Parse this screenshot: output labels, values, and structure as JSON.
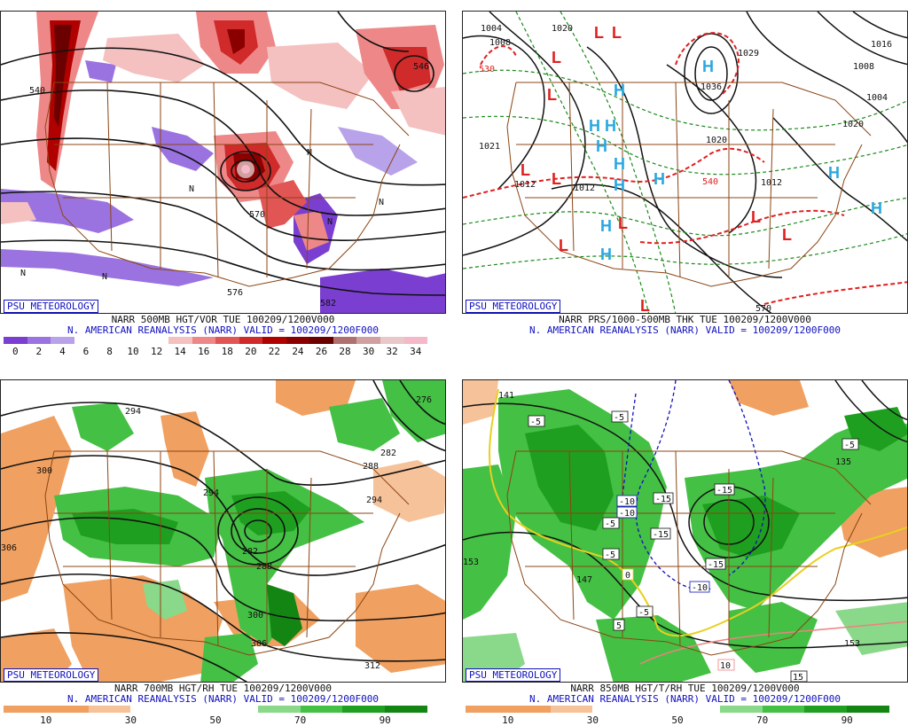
{
  "panels": [
    {
      "id": "500mb",
      "badge": "PSU METEOROLOGY",
      "title_line1": "NARR 500MB HGT/VOR TUE 100209/1200V000",
      "title_line2": "N. AMERICAN REANALYSIS (NARR) VALID = 100209/1200F000",
      "colorbar": {
        "colors": [
          "#7a3fd0",
          "#9a73e0",
          "#b8a3ea",
          "#ffffff",
          "#ffffff",
          "#ffffff",
          "#ffffff",
          "#f4c0c0",
          "#ee8888",
          "#e25555",
          "#d02a2a",
          "#b00000",
          "#8a0000",
          "#6a0000",
          "#b07070",
          "#d0a0a0",
          "#e8c8c8",
          "#f5b8c8"
        ],
        "ticks": [
          "0",
          "2",
          "4",
          "6",
          "8",
          "10",
          "12",
          "14",
          "16",
          "18",
          "20",
          "22",
          "24",
          "26",
          "28",
          "30",
          "32",
          "34"
        ]
      },
      "contour_labels": [
        "540",
        "546",
        "570",
        "576",
        "582"
      ],
      "map_symbols": [
        "N",
        "N",
        "N",
        "N",
        "N",
        "N"
      ]
    },
    {
      "id": "prs",
      "badge": "PSU METEOROLOGY",
      "title_line1": "NARR PRS/1000-500MB THK TUE 100209/1200V000",
      "title_line2": "N. AMERICAN REANALYSIS (NARR) VALID = 100209/1200F000",
      "contour_labels": [
        "1004",
        "1020",
        "1016",
        "1008",
        "530",
        "1021",
        "1012",
        "1012",
        "1036",
        "1029",
        "1020",
        "1020",
        "1012",
        "570",
        "540",
        "1008",
        "1004"
      ],
      "highs": [
        "H",
        "H",
        "H",
        "H",
        "H",
        "H",
        "H",
        "H",
        "H",
        "H",
        "H",
        "H"
      ],
      "lows": [
        "L",
        "L",
        "L",
        "L",
        "L",
        "L",
        "L",
        "L",
        "L",
        "L",
        "L"
      ]
    },
    {
      "id": "700mb",
      "badge": "PSU METEOROLOGY",
      "title_line1": "NARR 700MB HGT/RH TUE 100209/1200V000",
      "title_line2": "N. AMERICAN REANALYSIS (NARR) VALID = 100209/1200F000",
      "colorbar": {
        "colors": [
          "#f0a060",
          "#f0a060",
          "#f6c29a",
          "#ffffff",
          "#ffffff",
          "#ffffff",
          "#8ad88a",
          "#44c044",
          "#1f9f1f",
          "#138513"
        ],
        "ticks": [
          "10",
          "30",
          "50",
          "70",
          "90"
        ]
      },
      "contour_labels": [
        "294",
        "300",
        "306",
        "294",
        "282",
        "288",
        "300",
        "306",
        "312",
        "294",
        "276",
        "282",
        "288"
      ]
    },
    {
      "id": "850mb",
      "badge": "PSU METEOROLOGY",
      "title_line1": "NARR 850MB HGT/T/RH TUE 100209/1200V000",
      "title_line2": "N. AMERICAN REANALYSIS (NARR) VALID = 100209/1200F000",
      "colorbar": {
        "colors": [
          "#f0a060",
          "#f0a060",
          "#f6c29a",
          "#ffffff",
          "#ffffff",
          "#ffffff",
          "#8ad88a",
          "#44c044",
          "#1f9f1f",
          "#138513"
        ],
        "ticks": [
          "10",
          "30",
          "50",
          "70",
          "90"
        ]
      },
      "contour_labels": [
        "141",
        "153",
        "147",
        "135",
        "153"
      ],
      "temp_labels": [
        "-5",
        "-5",
        "-10",
        "-10",
        "-15",
        "-15",
        "-5",
        "-5",
        "-15",
        "-15",
        "-10",
        "-5",
        "-5",
        "0",
        "5",
        "10",
        "15"
      ]
    }
  ]
}
